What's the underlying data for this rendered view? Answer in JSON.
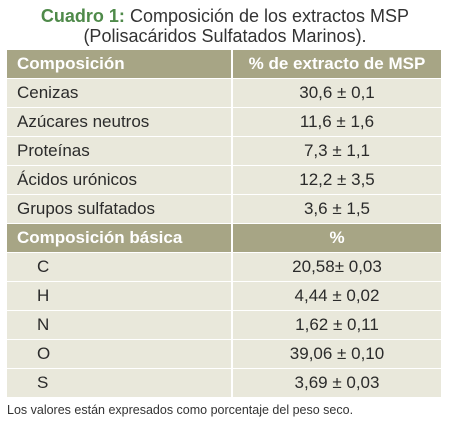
{
  "title": {
    "prefix": "Cuadro 1:",
    "text": "Composición de los extractos MSP",
    "line2": "(Polisacáridos Sulfatados Marinos)."
  },
  "table": {
    "header": {
      "col1": "Composición",
      "col2": "% de extracto de MSP"
    },
    "rows": [
      {
        "label": "Cenizas",
        "value": "30,6 ± 0,1"
      },
      {
        "label": "Azúcares neutros",
        "value": "11,6 ± 1,6"
      },
      {
        "label": "Proteínas",
        "value": "7,3 ± 1,1"
      },
      {
        "label": "Ácidos urónicos",
        "value": "12,2 ± 3,5"
      },
      {
        "label": "Grupos sulfatados",
        "value": "3,6 ± 1,5"
      }
    ],
    "subheader": {
      "col1": "Composición básica",
      "col2": "%"
    },
    "basic_rows": [
      {
        "label": "C",
        "value": "20,58± 0,03"
      },
      {
        "label": "H",
        "value": "4,44 ± 0,02"
      },
      {
        "label": "N",
        "value": "1,62 ± 0,11"
      },
      {
        "label": "O",
        "value": "39,06 ± 0,10"
      },
      {
        "label": "S",
        "value": "3,69 ± 0,03"
      }
    ]
  },
  "footnote": "Los valores están expresados como porcentaje del peso seco."
}
